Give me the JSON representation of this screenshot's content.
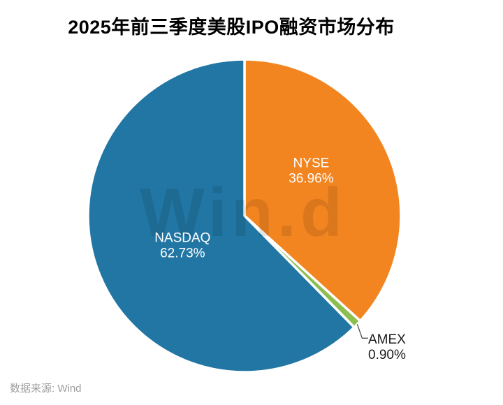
{
  "title": "2025年前三季度美股IPO融资市场分布",
  "source": "数据来源: Wind",
  "watermark": "Win.d",
  "colors": {
    "nasdaq_blue": "#2176A4",
    "nyse_orange": "#F38521",
    "amex_green": "#8CBE50",
    "slice_border": "#ffffff",
    "inside_label": "#ffffff",
    "outside_label": "#1a1a1a",
    "leader_line": "#4d4d4d",
    "title_text": "#000000",
    "source_text": "#9e9e9e",
    "watermark_fill": "#000000"
  },
  "chart_data": {
    "type": "pie",
    "title": "2025年前三季度美股IPO融资市场分布",
    "start_angle_deg": 90,
    "direction": "clockwise",
    "legend": "none",
    "labels_on_slices": true,
    "slices": [
      {
        "label": "NYSE",
        "value": 36.96,
        "display": "36.96%",
        "color": "#F38521",
        "label_pos": "inside"
      },
      {
        "label": "AMEX",
        "value": 0.9,
        "display": "0.90%",
        "color": "#8CBE50",
        "label_pos": "outside"
      },
      {
        "label": "NASDAQ",
        "value": 62.73,
        "display": "62.73%",
        "color": "#2176A4",
        "label_pos": "inside"
      }
    ]
  }
}
